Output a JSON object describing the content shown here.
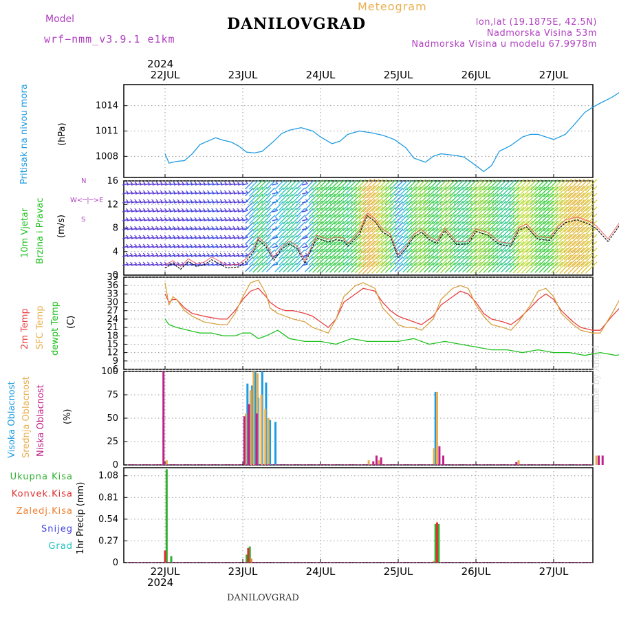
{
  "header": {
    "model_label": "Model",
    "model_name": "wrf−nmm_v3.9.1 e1km",
    "title": "DANILOVGRAD",
    "subtitle": "Meteogram",
    "lonlat": "lon,lat (19.1875E, 42.5N)",
    "elevation": "Nadmorska Visina 53m",
    "model_elevation": "Nadmorska Visina u modelu 67.9978m",
    "footer_title": "DANILOVGRAD",
    "credit": "made by Angel",
    "year_top": "2024",
    "year_bottom": "2024"
  },
  "axes_labels": {
    "pressure": "Pritisak na nivou mora",
    "pressure_unit": "(hPa)",
    "wind_a": "10m Vjetar",
    "wind_b": "Brzina i Pravac",
    "wind_unit": "(m/s)",
    "temp_2m": "2m Temp",
    "temp_sfc": "SFC Temp",
    "temp_dew": "dewpt Temp",
    "temp_unit": "(C)",
    "cloud_high": "Visoka Oblacnost",
    "cloud_mid": "Srednja Oblacnost",
    "cloud_low": "Niska Oblacnost",
    "cloud_unit": "(%)",
    "precip_unit": "1hr Precip (mm)",
    "precip_total": "Ukupna Kisa",
    "precip_conv": "Konvek.Kisa",
    "precip_frozen": "Zaledj.Kisa",
    "precip_snow": "Snijeg",
    "precip_graupel": "Grad"
  },
  "colors": {
    "pressure": "#1e9be0",
    "temp_2m": "#e84040",
    "temp_sfc": "#d8a040",
    "dewpoint": "#20c020",
    "cloud_high": "#1e9be0",
    "cloud_mid": "#e8b050",
    "cloud_low": "#c0208a",
    "precip_total": "#30b030",
    "precip_conv": "#e03030",
    "precip_frozen": "#f08030",
    "precip_snow": "#4040e0",
    "precip_graupel": "#20c0c0",
    "label_purple": "#b040c0"
  },
  "chart_data": [
    {
      "type": "line",
      "panel": "pressure",
      "x_ticks": [
        "22JUL",
        "23JUL",
        "24JUL",
        "25JUL",
        "26JUL",
        "27JUL"
      ],
      "ylabel": "(hPa)",
      "y_ticks": [
        1008,
        1011,
        1014
      ],
      "ylim": [
        1005.5,
        1016.5
      ],
      "xlim_days": [
        0,
        6.95
      ],
      "series": [
        {
          "name": "Pritisak na nivou mora",
          "x": [
            0,
            0.05,
            0.15,
            0.25,
            0.35,
            0.45,
            0.55,
            0.65,
            0.75,
            0.85,
            0.95,
            1.05,
            1.15,
            1.25,
            1.4,
            1.5,
            1.6,
            1.75,
            1.9,
            2.0,
            2.15,
            2.25,
            2.35,
            2.5,
            2.65,
            2.8,
            2.95,
            3.1,
            3.2,
            3.35,
            3.45,
            3.55,
            3.65,
            3.75,
            3.85,
            4.0,
            4.1,
            4.2,
            4.3,
            4.45,
            4.6,
            4.7,
            4.8,
            4.9,
            5.0,
            5.15,
            5.25,
            5.4,
            5.5,
            5.6,
            5.75,
            5.9,
            6.0,
            6.1,
            6.2,
            6.3,
            6.4,
            6.5,
            6.6,
            6.7,
            6.8,
            6.95
          ],
          "y": [
            1008.3,
            1007.2,
            1007.4,
            1007.5,
            1008.3,
            1009.4,
            1009.8,
            1010.2,
            1009.9,
            1009.7,
            1009.2,
            1008.5,
            1008.4,
            1008.6,
            1009.8,
            1010.7,
            1011.1,
            1011.4,
            1011.0,
            1010.3,
            1009.5,
            1009.8,
            1010.6,
            1011.0,
            1010.8,
            1010.5,
            1010.0,
            1009.0,
            1007.8,
            1007.3,
            1008.0,
            1008.3,
            1008.2,
            1008.1,
            1007.9,
            1006.9,
            1006.2,
            1006.9,
            1008.6,
            1009.3,
            1010.3,
            1010.6,
            1010.6,
            1010.3,
            1010.0,
            1010.6,
            1011.6,
            1013.2,
            1013.8,
            1014.3,
            1015.0,
            1015.9,
            1015.8,
            1015.4,
            1014.9,
            1015.0,
            1015.8,
            1016.3,
            1016.1,
            1015.5,
            1015.1,
            1014.9
          ]
        }
      ]
    },
    {
      "type": "line",
      "panel": "wind",
      "ylabel": "(m/s)",
      "y_ticks": [
        0,
        4,
        8,
        12,
        16
      ],
      "ylim": [
        0,
        16
      ],
      "note": "wind barbs colored by speed",
      "series": [
        {
          "name": "10m Vjetar",
          "x": [
            0,
            0.1,
            0.2,
            0.3,
            0.4,
            0.5,
            0.6,
            0.8,
            0.95,
            1.05,
            1.15,
            1.2,
            1.3,
            1.4,
            1.5,
            1.6,
            1.7,
            1.8,
            1.95,
            2.1,
            2.2,
            2.3,
            2.35,
            2.5,
            2.6,
            2.7,
            2.8,
            2.9,
            3.0,
            3.1,
            3.2,
            3.3,
            3.4,
            3.5,
            3.6,
            3.75,
            3.9,
            4.0,
            4.15,
            4.3,
            4.45,
            4.55,
            4.65,
            4.8,
            4.95,
            5.05,
            5.15,
            5.3,
            5.45,
            5.55,
            5.7,
            5.85,
            6.0,
            6.15,
            6.3,
            6.5,
            6.7,
            6.95
          ],
          "y": [
            1.2,
            2.0,
            1.0,
            2.3,
            1.5,
            1.7,
            2.6,
            1.2,
            1.4,
            2.4,
            4.2,
            6.0,
            4.8,
            2.5,
            4.4,
            5.3,
            4.5,
            2.0,
            6.3,
            5.6,
            6.0,
            5.8,
            4.9,
            6.9,
            10.1,
            9.1,
            7.3,
            6.5,
            3.0,
            4.5,
            6.5,
            7.3,
            6.0,
            5.4,
            7.5,
            5.2,
            5.3,
            7.4,
            6.8,
            5.2,
            4.9,
            7.6,
            8.2,
            6.1,
            5.9,
            7.7,
            8.9,
            9.4,
            8.7,
            7.9,
            5.7,
            8.5,
            9.1,
            6.2,
            3.2,
            1.8,
            2.4,
            1.5
          ]
        }
      ]
    },
    {
      "type": "line",
      "panel": "temperature",
      "ylabel": "(C)",
      "y_ticks": [
        6,
        9,
        12,
        15,
        18,
        21,
        24,
        27,
        30,
        33,
        36,
        39
      ],
      "ylim": [
        6,
        39
      ],
      "series": [
        {
          "name": "2m Temp",
          "x": [
            0,
            0.05,
            0.1,
            0.15,
            0.25,
            0.35,
            0.5,
            0.7,
            0.8,
            0.9,
            1.0,
            1.1,
            1.2,
            1.3,
            1.35,
            1.45,
            1.55,
            1.65,
            1.8,
            1.9,
            2.0,
            2.1,
            2.2,
            2.3,
            2.45,
            2.55,
            2.7,
            2.8,
            2.9,
            3.0,
            3.1,
            3.2,
            3.3,
            3.45,
            3.55,
            3.7,
            3.8,
            3.9,
            4.0,
            4.1,
            4.2,
            4.35,
            4.45,
            4.55,
            4.7,
            4.8,
            4.9,
            5.0,
            5.1,
            5.25,
            5.35,
            5.5,
            5.6,
            5.75,
            5.85,
            5.95,
            6.05,
            6.15,
            6.3,
            6.45,
            6.6,
            6.8,
            6.95
          ],
          "y": [
            33,
            30,
            31,
            31,
            28,
            26,
            25,
            24,
            24,
            27,
            31,
            34,
            35,
            32,
            30,
            28,
            27,
            27,
            26,
            25,
            23,
            21,
            24,
            30,
            33,
            35,
            34,
            30,
            27,
            25,
            24,
            23,
            22,
            25,
            29,
            32,
            34,
            33,
            30,
            26,
            24,
            23,
            22,
            24,
            28,
            31,
            33,
            31,
            27,
            23,
            21,
            20,
            20,
            25,
            28,
            30,
            28,
            24,
            19,
            17,
            22,
            27,
            31
          ]
        },
        {
          "name": "SFC Temp",
          "x": [
            0,
            0.05,
            0.1,
            0.15,
            0.25,
            0.35,
            0.5,
            0.7,
            0.8,
            0.9,
            1.0,
            1.1,
            1.2,
            1.3,
            1.35,
            1.45,
            1.55,
            1.65,
            1.8,
            1.9,
            2.0,
            2.1,
            2.2,
            2.3,
            2.45,
            2.55,
            2.7,
            2.8,
            2.9,
            3.0,
            3.1,
            3.2,
            3.3,
            3.45,
            3.55,
            3.7,
            3.8,
            3.9,
            4.0,
            4.1,
            4.2,
            4.35,
            4.45,
            4.55,
            4.7,
            4.8,
            4.9,
            5.0,
            5.1,
            5.25,
            5.35,
            5.5,
            5.6,
            5.75,
            5.85,
            5.95,
            6.05,
            6.15,
            6.3,
            6.45,
            6.6,
            6.8,
            6.95
          ],
          "y": [
            37,
            29,
            32,
            31,
            27,
            25,
            23,
            22,
            22,
            26,
            32,
            37,
            38,
            33,
            28,
            26,
            25,
            24,
            23,
            21,
            20,
            19,
            24,
            32,
            36,
            37,
            35,
            28,
            25,
            22,
            21,
            21,
            20,
            24,
            31,
            35,
            36,
            35,
            29,
            25,
            22,
            21,
            20,
            23,
            29,
            34,
            35,
            32,
            26,
            22,
            20,
            19,
            19,
            26,
            31,
            33,
            30,
            23,
            16,
            14,
            20,
            30,
            35
          ]
        },
        {
          "name": "dewpt Temp",
          "x": [
            0,
            0.05,
            0.15,
            0.3,
            0.45,
            0.6,
            0.75,
            0.9,
            1.0,
            1.1,
            1.2,
            1.3,
            1.45,
            1.6,
            1.8,
            2.0,
            2.2,
            2.4,
            2.6,
            2.8,
            3.0,
            3.2,
            3.4,
            3.6,
            3.8,
            4.0,
            4.2,
            4.4,
            4.6,
            4.8,
            5.0,
            5.2,
            5.4,
            5.6,
            5.8,
            6.0,
            6.1,
            6.2,
            6.4,
            6.5,
            6.6,
            6.7,
            6.8,
            6.95
          ],
          "y": [
            24,
            22,
            21,
            20,
            19,
            19,
            18,
            18,
            19,
            19,
            17,
            18,
            20,
            17,
            16,
            16,
            15,
            17,
            16,
            16,
            16,
            17,
            15,
            16,
            15,
            14,
            13,
            13,
            12,
            13,
            12,
            12,
            11,
            12,
            11,
            12,
            10,
            11,
            9,
            9,
            10,
            9,
            10,
            10
          ]
        }
      ]
    },
    {
      "type": "bar",
      "panel": "clouds",
      "ylabel": "(%)",
      "y_ticks": [
        0,
        25,
        50,
        75,
        100
      ],
      "ylim": [
        0,
        100
      ],
      "series": [
        {
          "name": "Visoka Oblacnost",
          "x": [
            1.06,
            1.12,
            1.16,
            1.2,
            1.25,
            1.3,
            1.35,
            1.42,
            3.48
          ],
          "values": [
            87,
            85,
            100,
            72,
            100,
            88,
            48,
            46,
            78
          ]
        },
        {
          "name": "Srednja Oblacnost",
          "x": [
            0.02,
            1.04,
            1.1,
            1.14,
            1.19,
            1.24,
            1.29,
            1.33,
            2.62,
            2.75,
            3.46,
            3.5,
            4.55,
            5.55
          ],
          "values": [
            5,
            55,
            80,
            100,
            98,
            75,
            60,
            50,
            5,
            5,
            18,
            78,
            5,
            10
          ]
        },
        {
          "name": "Niska Oblacnost",
          "x": [
            -0.02,
            1.02,
            1.08,
            1.18,
            2.68,
            2.72,
            2.78,
            3.53,
            3.58,
            4.52,
            5.58,
            5.63
          ],
          "values": [
            100,
            52,
            65,
            55,
            4,
            10,
            8,
            20,
            10,
            3,
            10,
            10
          ]
        }
      ]
    },
    {
      "type": "bar",
      "panel": "precipitation",
      "ylabel": "1hr Precip (mm)",
      "y_ticks": [
        0,
        0.27,
        0.54,
        0.81,
        1.08
      ],
      "ylim": [
        0,
        1.18
      ],
      "series": [
        {
          "name": "Ukupna Kisa",
          "x": [
            0.02,
            0.08,
            1.05,
            1.09,
            3.48,
            3.52
          ],
          "values": [
            1.16,
            0.08,
            0.1,
            0.2,
            0.48,
            0.48
          ]
        },
        {
          "name": "Konvek.Kisa",
          "x": [
            0.0,
            1.07,
            3.5
          ],
          "values": [
            0.15,
            0.18,
            0.5
          ]
        },
        {
          "name": "Zaledj.Kisa",
          "x": [
            1.11,
            3.46
          ],
          "values": [
            0.05,
            0.02
          ]
        },
        {
          "name": "Snijeg",
          "x": [],
          "values": []
        },
        {
          "name": "Grad",
          "x": [],
          "values": []
        }
      ]
    }
  ]
}
